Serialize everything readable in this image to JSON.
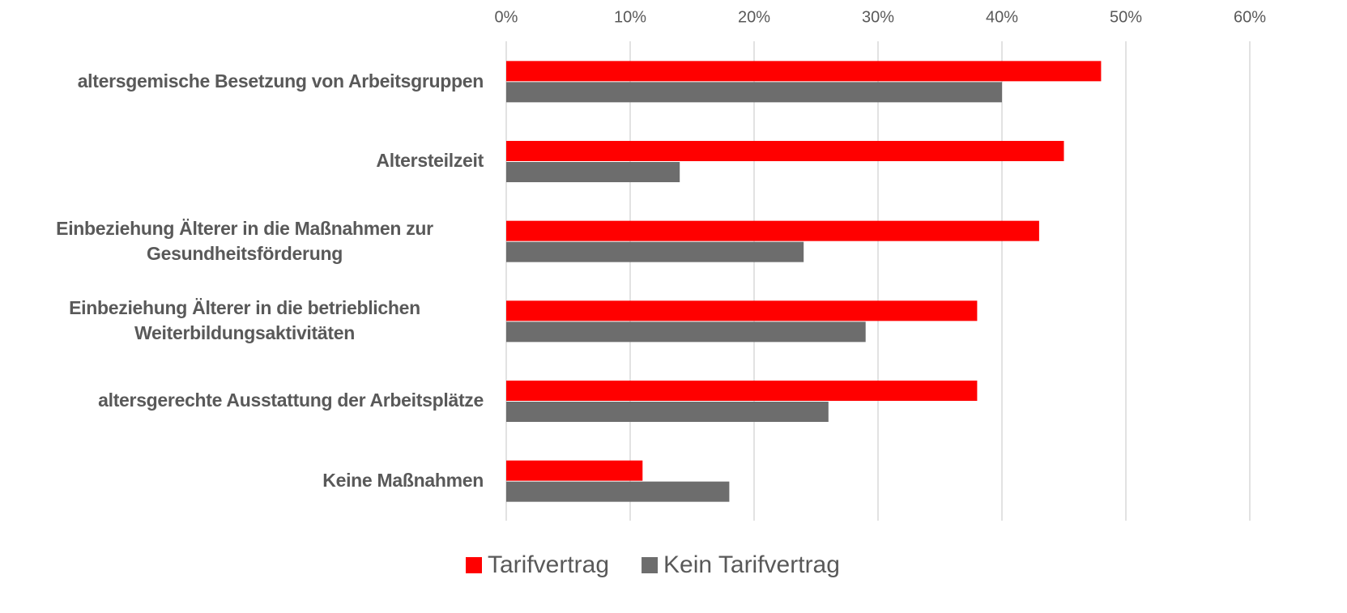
{
  "chart_data": {
    "type": "bar",
    "orientation": "horizontal",
    "categories": [
      "altersgemische Besetzung von Arbeitsgruppen",
      "Altersteilzeit",
      "Einbeziehung Älterer in die Maßnahmen zur Gesundheitsförderung",
      "Einbeziehung Älterer in die betrieblichen Weiterbildungsaktivitäten",
      "altersgerechte Ausstattung der Arbeitsplätze",
      "Keine Maßnahmen"
    ],
    "series": [
      {
        "name": "Tarifvertrag",
        "color": "#ff0000",
        "values": [
          48,
          45,
          43,
          38,
          38,
          11
        ]
      },
      {
        "name": "Kein Tarifvertrag",
        "color": "#6d6d6d",
        "values": [
          40,
          14,
          24,
          29,
          26,
          18
        ]
      }
    ],
    "xlim": [
      0,
      60
    ],
    "xticks": [
      {
        "value": 0,
        "label": "0%"
      },
      {
        "value": 10,
        "label": "10%"
      },
      {
        "value": 20,
        "label": "20%"
      },
      {
        "value": 30,
        "label": "30%"
      },
      {
        "value": 40,
        "label": "40%"
      },
      {
        "value": 50,
        "label": "50%"
      },
      {
        "value": 60,
        "label": "60%"
      }
    ],
    "grid": true,
    "legend": "bottom"
  }
}
